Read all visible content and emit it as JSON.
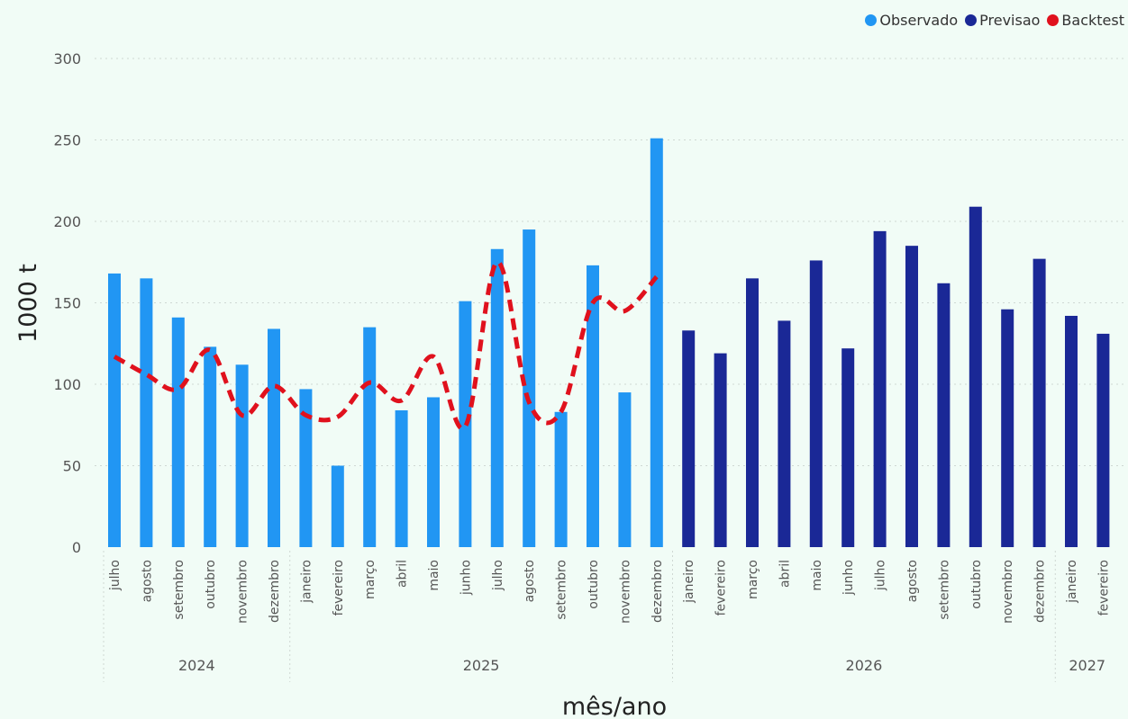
{
  "colors": {
    "observado": "#2196f3",
    "previsao": "#1a2896",
    "backtest": "#e0111d",
    "grid": "#cfd8d3",
    "text": "#555555"
  },
  "legend": [
    {
      "label": "Observado",
      "color": "#2196f3"
    },
    {
      "label": "Previsao",
      "color": "#1a2896"
    },
    {
      "label": "Backtest",
      "color": "#e0111d"
    }
  ],
  "chart_data": {
    "type": "bar",
    "xlabel": "mês/ano",
    "ylabel": "1000 t",
    "ylim": [
      0,
      300
    ],
    "yticks": [
      0,
      50,
      100,
      150,
      200,
      250,
      300
    ],
    "grid": true,
    "legend_position": "top-right",
    "years": [
      {
        "label": "2024",
        "months": 6
      },
      {
        "label": "2025",
        "months": 12
      },
      {
        "label": "2026",
        "months": 12
      },
      {
        "label": "2027",
        "months": 2
      }
    ],
    "categories": [
      "julho",
      "agosto",
      "setembro",
      "outubro",
      "novembro",
      "dezembro",
      "janeiro",
      "fevereiro",
      "março",
      "abril",
      "maio",
      "junho",
      "julho",
      "agosto",
      "setembro",
      "outubro",
      "novembro",
      "dezembro",
      "janeiro",
      "fevereiro",
      "março",
      "abril",
      "maio",
      "junho",
      "julho",
      "agosto",
      "setembro",
      "outubro",
      "novembro",
      "dezembro",
      "janeiro",
      "fevereiro"
    ],
    "series": [
      {
        "name": "Observado",
        "type": "bar",
        "values": [
          168,
          165,
          141,
          123,
          112,
          134,
          97,
          50,
          135,
          84,
          92,
          151,
          183,
          195,
          83,
          173,
          95,
          251,
          null,
          null,
          null,
          null,
          null,
          null,
          null,
          null,
          null,
          null,
          null,
          null,
          null,
          null
        ]
      },
      {
        "name": "Previsao",
        "type": "bar",
        "values": [
          null,
          null,
          null,
          null,
          null,
          null,
          null,
          null,
          null,
          null,
          null,
          null,
          null,
          null,
          null,
          null,
          null,
          null,
          133,
          119,
          165,
          139,
          176,
          122,
          194,
          185,
          162,
          209,
          146,
          177,
          142,
          131
        ]
      },
      {
        "name": "Backtest",
        "type": "line",
        "values": [
          117,
          106,
          97,
          121,
          81,
          99,
          81,
          80,
          101,
          90,
          117,
          74,
          175,
          89,
          83,
          150,
          145,
          166,
          null,
          null,
          null,
          null,
          null,
          null,
          null,
          null,
          null,
          null,
          null,
          null,
          null,
          null
        ]
      }
    ]
  }
}
